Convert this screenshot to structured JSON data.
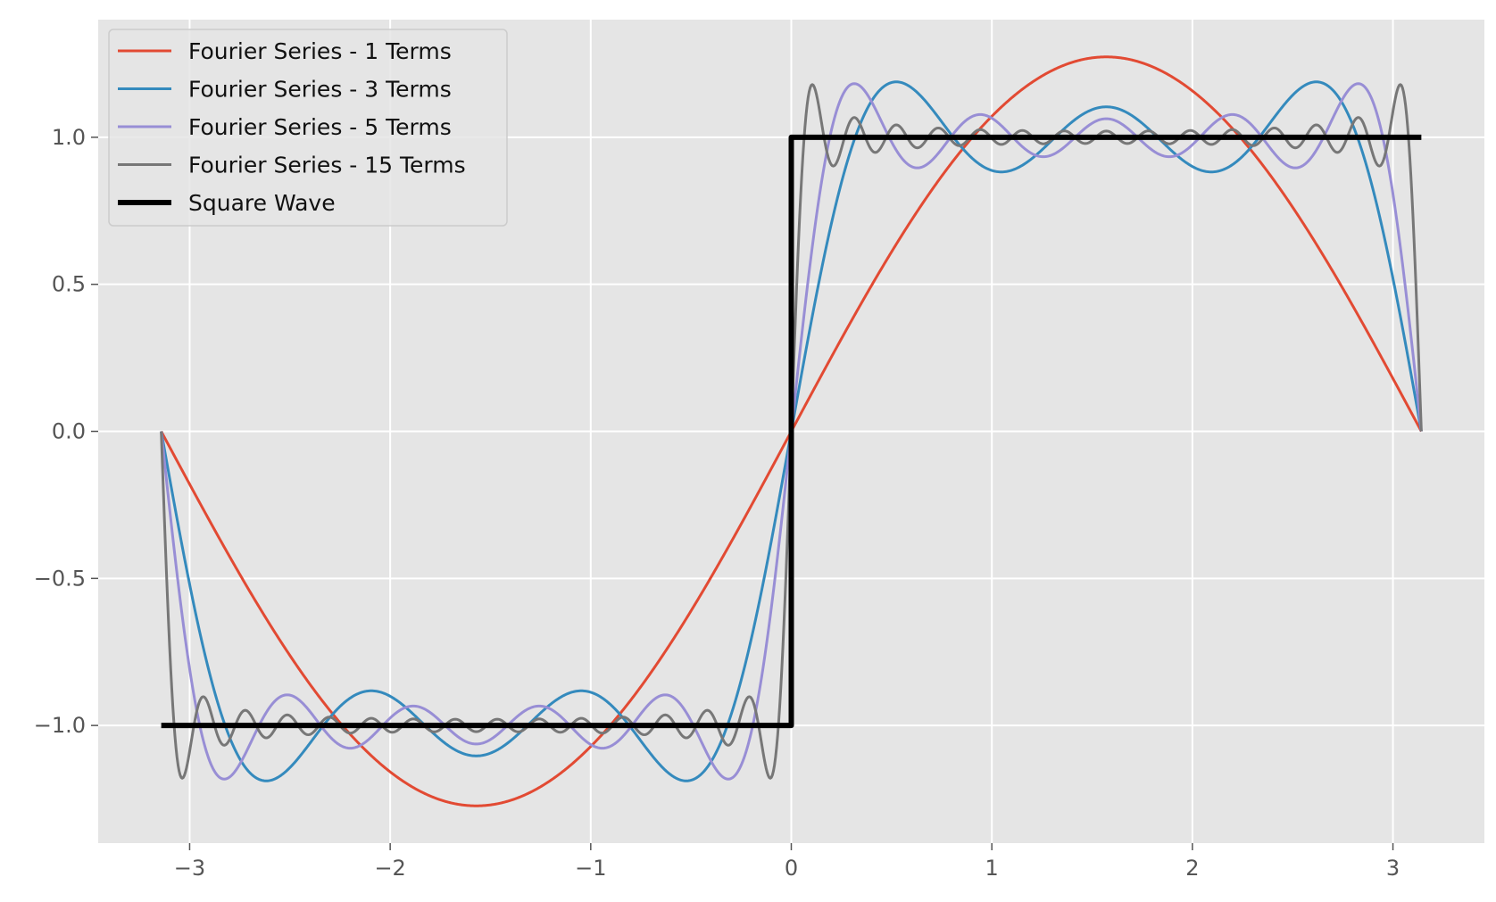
{
  "chart_data": {
    "type": "line",
    "title": "",
    "xlabel": "",
    "ylabel": "",
    "xlim": [
      -3.456,
      3.456
    ],
    "ylim": [
      -1.4,
      1.4
    ],
    "grid": true,
    "background": "#e5e5e5",
    "legend_position": "upper-left",
    "x_ticks": [
      {
        "value": -3,
        "label": "−3"
      },
      {
        "value": -2,
        "label": "−2"
      },
      {
        "value": -1,
        "label": "−1"
      },
      {
        "value": 0,
        "label": "0"
      },
      {
        "value": 1,
        "label": "1"
      },
      {
        "value": 2,
        "label": "2"
      },
      {
        "value": 3,
        "label": "3"
      }
    ],
    "y_ticks": [
      {
        "value": -1.0,
        "label": "−1.0"
      },
      {
        "value": -0.5,
        "label": "−0.5"
      },
      {
        "value": 0.0,
        "label": "0.0"
      },
      {
        "value": 0.5,
        "label": "0.5"
      },
      {
        "value": 1.0,
        "label": "1.0"
      }
    ],
    "x_range": [
      -3.14159,
      3.14159
    ],
    "series": [
      {
        "name": "Fourier Series - 1 Terms",
        "terms": 1,
        "color": "#e24a33",
        "kind": "fourier"
      },
      {
        "name": "Fourier Series - 3 Terms",
        "terms": 3,
        "color": "#348abd",
        "kind": "fourier"
      },
      {
        "name": "Fourier Series - 5 Terms",
        "terms": 5,
        "color": "#988ed5",
        "kind": "fourier"
      },
      {
        "name": "Fourier Series - 15 Terms",
        "terms": 15,
        "color": "#777777",
        "kind": "fourier"
      },
      {
        "name": "Square Wave",
        "color": "#000000",
        "kind": "square",
        "x": [
          -3.14159,
          0,
          0,
          3.14159
        ],
        "y": [
          -1,
          -1,
          1,
          1
        ]
      }
    ]
  }
}
